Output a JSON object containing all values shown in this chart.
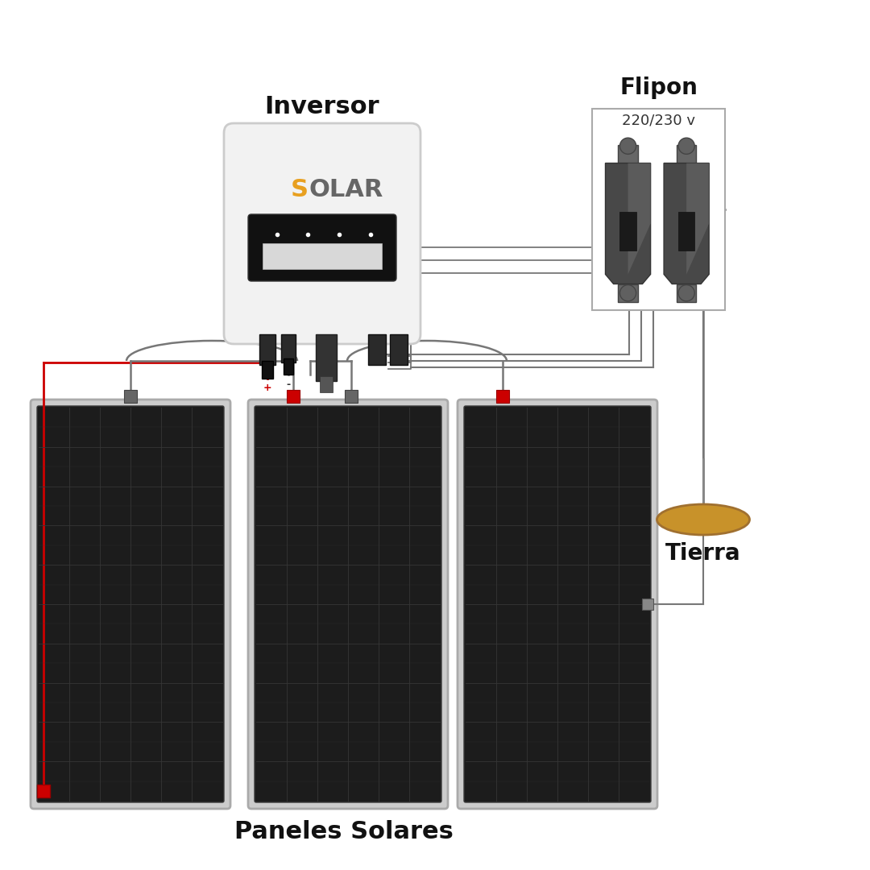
{
  "bg_color": "#ffffff",
  "title_inversor": "Inversor",
  "title_flipon": "Flipon",
  "subtitle_flipon": "220/230 v",
  "title_panels": "Paneles Solares",
  "title_tierra": "Tierra",
  "wire_color": "#777777",
  "wire_red": "#cc0000",
  "inversor_body_color": "#f2f2f2",
  "panel_color": "#1c1c1c",
  "panel_grid": "#363636",
  "flipon_color": "#484848",
  "tierra_color": "#c8922a"
}
